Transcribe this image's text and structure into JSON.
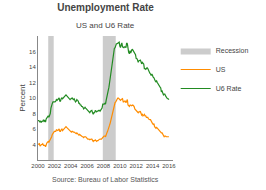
{
  "chart_data": {
    "type": "line",
    "title": "Unemployment Rate",
    "subtitle": "US and U6 Rate",
    "source": "Source: Bureau of Labor Statistics",
    "ylabel": "Percent",
    "xlim": [
      2000,
      2016.5
    ],
    "ylim": [
      2,
      18
    ],
    "xticks": [
      2000,
      2002,
      2004,
      2006,
      2008,
      2010,
      2012,
      2014,
      2016
    ],
    "yticks": [
      4,
      6,
      8,
      10,
      12,
      14,
      16
    ],
    "grid": false,
    "legend": "right",
    "bands": {
      "name": "Recession",
      "color": "#CCCCCC",
      "ranges": [
        [
          2001.25,
          2001.92
        ],
        [
          2007.92,
          2009.5
        ]
      ]
    },
    "x": [
      2000.0,
      2000.08,
      2000.17,
      2000.25,
      2000.33,
      2000.42,
      2000.5,
      2000.58,
      2000.67,
      2000.75,
      2000.83,
      2000.92,
      2001.0,
      2001.08,
      2001.17,
      2001.25,
      2001.33,
      2001.42,
      2001.5,
      2001.58,
      2001.67,
      2001.75,
      2001.83,
      2001.92,
      2002.0,
      2002.08,
      2002.17,
      2002.25,
      2002.33,
      2002.42,
      2002.5,
      2002.58,
      2002.67,
      2002.75,
      2002.83,
      2002.92,
      2003.0,
      2003.08,
      2003.17,
      2003.25,
      2003.33,
      2003.42,
      2003.5,
      2003.58,
      2003.67,
      2003.75,
      2003.83,
      2003.92,
      2004.0,
      2004.08,
      2004.17,
      2004.25,
      2004.33,
      2004.42,
      2004.5,
      2004.58,
      2004.67,
      2004.75,
      2004.83,
      2004.92,
      2005.0,
      2005.08,
      2005.17,
      2005.25,
      2005.33,
      2005.42,
      2005.5,
      2005.58,
      2005.67,
      2005.75,
      2005.83,
      2005.92,
      2006.0,
      2006.08,
      2006.17,
      2006.25,
      2006.33,
      2006.42,
      2006.5,
      2006.58,
      2006.67,
      2006.75,
      2006.83,
      2006.92,
      2007.0,
      2007.08,
      2007.17,
      2007.25,
      2007.33,
      2007.42,
      2007.5,
      2007.58,
      2007.67,
      2007.75,
      2007.83,
      2007.92,
      2008.0,
      2008.08,
      2008.17,
      2008.25,
      2008.33,
      2008.42,
      2008.5,
      2008.58,
      2008.67,
      2008.75,
      2008.83,
      2008.92,
      2009.0,
      2009.08,
      2009.17,
      2009.25,
      2009.33,
      2009.42,
      2009.5,
      2009.58,
      2009.67,
      2009.75,
      2009.83,
      2009.92,
      2010.0,
      2010.08,
      2010.17,
      2010.25,
      2010.33,
      2010.42,
      2010.5,
      2010.58,
      2010.67,
      2010.75,
      2010.83,
      2010.92,
      2011.0,
      2011.08,
      2011.17,
      2011.25,
      2011.33,
      2011.42,
      2011.5,
      2011.58,
      2011.67,
      2011.75,
      2011.83,
      2011.92,
      2012.0,
      2012.08,
      2012.17,
      2012.25,
      2012.33,
      2012.42,
      2012.5,
      2012.58,
      2012.67,
      2012.75,
      2012.83,
      2012.92,
      2013.0,
      2013.08,
      2013.17,
      2013.25,
      2013.33,
      2013.42,
      2013.5,
      2013.58,
      2013.67,
      2013.75,
      2013.83,
      2013.92,
      2014.0,
      2014.08,
      2014.17,
      2014.25,
      2014.33,
      2014.42,
      2014.5,
      2014.58,
      2014.67,
      2014.75,
      2014.83,
      2014.92,
      2015.0,
      2015.08,
      2015.17,
      2015.25,
      2015.33,
      2015.42,
      2015.5,
      2015.58,
      2015.67,
      2015.75,
      2015.83,
      2015.92,
      2016.0
    ],
    "series": [
      {
        "name": "US",
        "color": "#FF8C00",
        "values": [
          4.0,
          4.1,
          4.1,
          3.8,
          4.0,
          4.0,
          4.0,
          4.1,
          3.9,
          3.9,
          3.9,
          3.7,
          4.2,
          4.2,
          4.3,
          4.4,
          4.3,
          4.5,
          4.5,
          4.9,
          5.0,
          5.3,
          5.5,
          5.6,
          5.7,
          5.7,
          5.7,
          5.9,
          5.8,
          5.8,
          5.9,
          6.0,
          5.7,
          5.7,
          5.9,
          6.0,
          5.8,
          5.9,
          5.9,
          6.0,
          6.1,
          6.3,
          6.2,
          6.1,
          6.1,
          5.9,
          5.9,
          5.7,
          5.6,
          5.6,
          5.7,
          5.6,
          5.6,
          5.6,
          5.5,
          5.4,
          5.4,
          5.5,
          5.4,
          5.4,
          5.2,
          5.3,
          5.2,
          5.1,
          5.0,
          5.0,
          5.0,
          4.9,
          5.0,
          5.0,
          5.0,
          4.9,
          4.7,
          4.7,
          4.7,
          4.7,
          4.6,
          4.7,
          4.7,
          4.7,
          4.5,
          4.4,
          4.5,
          4.5,
          4.6,
          4.5,
          4.4,
          4.5,
          4.5,
          4.6,
          4.7,
          4.7,
          4.7,
          4.7,
          4.8,
          5.0,
          5.0,
          5.1,
          5.1,
          5.0,
          5.4,
          5.5,
          5.7,
          6.1,
          6.1,
          6.5,
          6.8,
          7.2,
          7.7,
          8.1,
          8.5,
          8.9,
          9.0,
          9.4,
          9.5,
          9.7,
          9.8,
          10.0,
          10.0,
          9.9,
          9.7,
          9.7,
          9.8,
          9.9,
          9.9,
          9.5,
          9.5,
          9.6,
          9.6,
          9.4,
          9.8,
          9.8,
          9.1,
          9.0,
          8.9,
          9.1,
          9.1,
          9.0,
          9.1,
          9.1,
          9.0,
          8.9,
          8.6,
          8.5,
          8.3,
          8.3,
          8.2,
          8.1,
          8.2,
          8.2,
          8.3,
          8.1,
          7.8,
          7.9,
          7.7,
          7.8,
          7.9,
          7.7,
          7.7,
          7.5,
          7.5,
          7.5,
          7.3,
          7.2,
          7.2,
          7.2,
          7.0,
          6.7,
          6.7,
          6.6,
          6.7,
          6.3,
          6.2,
          6.1,
          6.2,
          6.1,
          5.9,
          5.8,
          5.8,
          5.7,
          5.6,
          5.5,
          5.5,
          5.3,
          5.1,
          5.0,
          5.1,
          5.1,
          5.0,
          5.0,
          5.0,
          5.0,
          5.0
        ]
      },
      {
        "name": "U6 Rate",
        "color": "#228B22",
        "values": [
          7.1,
          7.1,
          7.0,
          6.9,
          7.0,
          6.9,
          7.0,
          7.0,
          7.2,
          7.0,
          7.1,
          6.9,
          7.3,
          7.5,
          7.6,
          7.7,
          7.5,
          7.8,
          8.0,
          8.7,
          8.9,
          9.3,
          9.5,
          9.5,
          9.5,
          9.5,
          9.6,
          9.8,
          9.7,
          9.8,
          9.9,
          10.0,
          9.6,
          9.6,
          9.9,
          10.0,
          9.9,
          10.0,
          10.0,
          10.2,
          10.3,
          10.4,
          10.3,
          10.2,
          10.2,
          10.0,
          10.0,
          9.8,
          9.9,
          9.9,
          10.0,
          9.9,
          9.8,
          9.9,
          9.7,
          9.5,
          9.6,
          9.8,
          9.7,
          9.6,
          9.3,
          9.3,
          9.1,
          9.1,
          8.9,
          8.9,
          8.8,
          8.6,
          8.7,
          8.8,
          8.7,
          8.6,
          8.4,
          8.3,
          8.3,
          8.1,
          8.1,
          8.3,
          8.4,
          8.4,
          8.1,
          7.9,
          8.1,
          8.1,
          8.4,
          8.3,
          8.2,
          8.3,
          8.3,
          8.4,
          8.4,
          8.3,
          8.5,
          8.5,
          8.7,
          9.2,
          9.2,
          9.2,
          9.3,
          9.2,
          9.7,
          10.1,
          10.5,
          11.1,
          11.4,
          12.0,
          12.6,
          13.5,
          14.2,
          15.1,
          15.7,
          16.0,
          16.4,
          16.5,
          16.8,
          17.0,
          17.0,
          17.1,
          17.2,
          17.2,
          16.7,
          16.5,
          16.9,
          17.1,
          16.6,
          16.5,
          16.5,
          16.6,
          16.6,
          16.5,
          17.1,
          17.0,
          16.2,
          15.9,
          15.7,
          16.1,
          15.8,
          16.0,
          16.3,
          16.2,
          16.0,
          15.9,
          15.6,
          15.6,
          15.1,
          15.1,
          14.9,
          14.6,
          14.8,
          14.9,
          14.9,
          14.7,
          14.4,
          14.6,
          14.4,
          14.4,
          13.8,
          13.8,
          13.7,
          13.8,
          13.9,
          13.8,
          13.5,
          13.2,
          13.2,
          13.1,
          12.9,
          13.1,
          12.7,
          12.7,
          12.6,
          12.3,
          12.2,
          12.1,
          12.2,
          12.0,
          11.8,
          11.7,
          11.4,
          11.4,
          11.3,
          10.8,
          10.9,
          10.5,
          10.4,
          10.5,
          10.5,
          10.3,
          10.0,
          10.0,
          9.9,
          9.9,
          9.8
        ]
      }
    ]
  }
}
